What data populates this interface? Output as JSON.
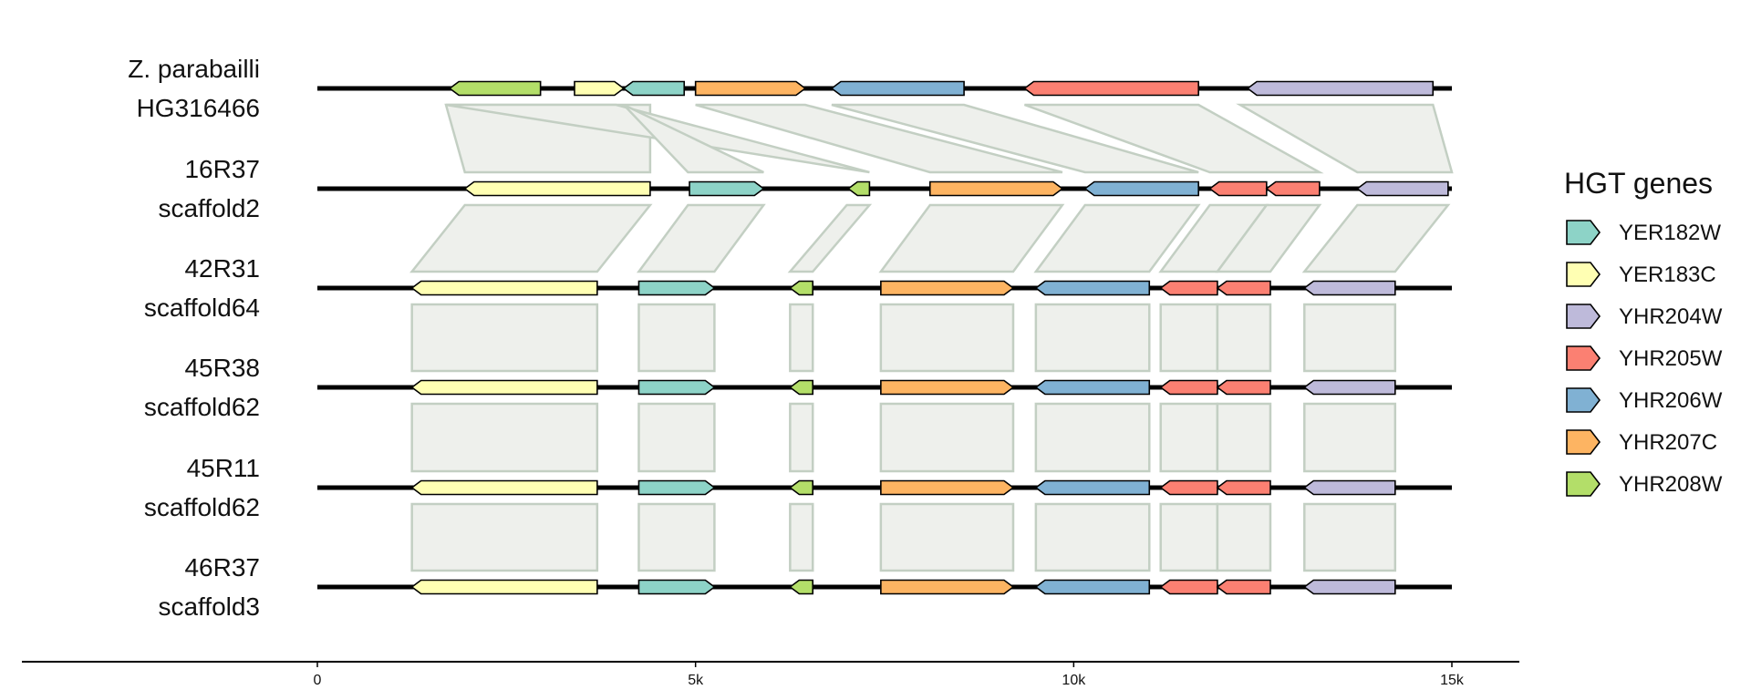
{
  "gene_colors": {
    "YER182W": "#8dd3c7",
    "YER183C": "#ffffb3",
    "YHR204W": "#bebada",
    "YHR205W": "#fb8072",
    "YHR206W": "#80b1d3",
    "YHR207C": "#fdb462",
    "YHR208W": "#b3de69"
  },
  "legend": {
    "title": "HGT genes",
    "items": [
      "YER182W",
      "YER183C",
      "YHR204W",
      "YHR205W",
      "YHR206W",
      "YHR207C",
      "YHR208W"
    ]
  },
  "axis": {
    "ticks": [
      {
        "value": 0,
        "label": "0"
      },
      {
        "value": 5000,
        "label": "5k"
      },
      {
        "value": 10000,
        "label": "10k"
      },
      {
        "value": 15000,
        "label": "15k"
      }
    ]
  },
  "tracks": [
    {
      "label_line1": "Z. parabailli",
      "label_line2": "HG316466",
      "length": 15000,
      "genes": [
        {
          "gene": "YHR208W",
          "start": 1750,
          "end": 2950,
          "strand": "-"
        },
        {
          "gene": "YER183C",
          "start": 3400,
          "end": 4050,
          "strand": "+"
        },
        {
          "gene": "YER182W",
          "start": 4050,
          "end": 4850,
          "strand": "-"
        },
        {
          "gene": "YHR207C",
          "start": 5000,
          "end": 6450,
          "strand": "+"
        },
        {
          "gene": "YHR206W",
          "start": 6800,
          "end": 8550,
          "strand": "-"
        },
        {
          "gene": "YHR205W",
          "start": 9350,
          "end": 11650,
          "strand": "-"
        },
        {
          "gene": "YHR204W",
          "start": 12300,
          "end": 14750,
          "strand": "-"
        }
      ]
    },
    {
      "label_line1": "16R37",
      "label_line2": "scaffold2",
      "length": 15000,
      "genes": [
        {
          "gene": "YER183C",
          "start": 1950,
          "end": 4400,
          "strand": "-"
        },
        {
          "gene": "YER182W",
          "start": 4920,
          "end": 5900,
          "strand": "+"
        },
        {
          "gene": "YHR208W",
          "start": 7020,
          "end": 7300,
          "strand": "-"
        },
        {
          "gene": "YHR207C",
          "start": 8100,
          "end": 9850,
          "strand": "+"
        },
        {
          "gene": "YHR206W",
          "start": 10150,
          "end": 11650,
          "strand": "-"
        },
        {
          "gene": "YHR205W",
          "start": 11800,
          "end": 12550,
          "strand": "-"
        },
        {
          "gene": "YHR205W",
          "start": 12550,
          "end": 13250,
          "strand": "-"
        },
        {
          "gene": "YHR204W",
          "start": 13750,
          "end": 14950,
          "strand": "-"
        }
      ]
    },
    {
      "label_line1": "42R31",
      "label_line2": "scaffold64",
      "length": 15000,
      "genes": [
        {
          "gene": "YER183C",
          "start": 1250,
          "end": 3700,
          "strand": "-"
        },
        {
          "gene": "YER182W",
          "start": 4250,
          "end": 5250,
          "strand": "+"
        },
        {
          "gene": "YHR208W",
          "start": 6250,
          "end": 6550,
          "strand": "-"
        },
        {
          "gene": "YHR207C",
          "start": 7450,
          "end": 9200,
          "strand": "+"
        },
        {
          "gene": "YHR206W",
          "start": 9500,
          "end": 11000,
          "strand": "-"
        },
        {
          "gene": "YHR205W",
          "start": 11150,
          "end": 11900,
          "strand": "-"
        },
        {
          "gene": "YHR205W",
          "start": 11900,
          "end": 12600,
          "strand": "-"
        },
        {
          "gene": "YHR204W",
          "start": 13050,
          "end": 14250,
          "strand": "-"
        }
      ]
    },
    {
      "label_line1": "45R38",
      "label_line2": "scaffold62",
      "length": 15000,
      "genes": [
        {
          "gene": "YER183C",
          "start": 1250,
          "end": 3700,
          "strand": "-"
        },
        {
          "gene": "YER182W",
          "start": 4250,
          "end": 5250,
          "strand": "+"
        },
        {
          "gene": "YHR208W",
          "start": 6250,
          "end": 6550,
          "strand": "-"
        },
        {
          "gene": "YHR207C",
          "start": 7450,
          "end": 9200,
          "strand": "+"
        },
        {
          "gene": "YHR206W",
          "start": 9500,
          "end": 11000,
          "strand": "-"
        },
        {
          "gene": "YHR205W",
          "start": 11150,
          "end": 11900,
          "strand": "-"
        },
        {
          "gene": "YHR205W",
          "start": 11900,
          "end": 12600,
          "strand": "-"
        },
        {
          "gene": "YHR204W",
          "start": 13050,
          "end": 14250,
          "strand": "-"
        }
      ]
    },
    {
      "label_line1": "45R11",
      "label_line2": "scaffold62",
      "length": 15000,
      "genes": [
        {
          "gene": "YER183C",
          "start": 1250,
          "end": 3700,
          "strand": "-"
        },
        {
          "gene": "YER182W",
          "start": 4250,
          "end": 5250,
          "strand": "+"
        },
        {
          "gene": "YHR208W",
          "start": 6250,
          "end": 6550,
          "strand": "-"
        },
        {
          "gene": "YHR207C",
          "start": 7450,
          "end": 9200,
          "strand": "+"
        },
        {
          "gene": "YHR206W",
          "start": 9500,
          "end": 11000,
          "strand": "-"
        },
        {
          "gene": "YHR205W",
          "start": 11150,
          "end": 11900,
          "strand": "-"
        },
        {
          "gene": "YHR205W",
          "start": 11900,
          "end": 12600,
          "strand": "-"
        },
        {
          "gene": "YHR204W",
          "start": 13050,
          "end": 14250,
          "strand": "-"
        }
      ]
    },
    {
      "label_line1": "46R37",
      "label_line2": "scaffold3",
      "length": 15000,
      "genes": [
        {
          "gene": "YER183C",
          "start": 1250,
          "end": 3700,
          "strand": "-"
        },
        {
          "gene": "YER182W",
          "start": 4250,
          "end": 5250,
          "strand": "+"
        },
        {
          "gene": "YHR208W",
          "start": 6250,
          "end": 6550,
          "strand": "-"
        },
        {
          "gene": "YHR207C",
          "start": 7450,
          "end": 9200,
          "strand": "+"
        },
        {
          "gene": "YHR206W",
          "start": 9500,
          "end": 11000,
          "strand": "-"
        },
        {
          "gene": "YHR205W",
          "start": 11150,
          "end": 11900,
          "strand": "-"
        },
        {
          "gene": "YHR205W",
          "start": 11900,
          "end": 12600,
          "strand": "-"
        },
        {
          "gene": "YHR204W",
          "start": 13050,
          "end": 14250,
          "strand": "-"
        }
      ]
    }
  ],
  "links": [
    {
      "from_track": 0,
      "to_track": 1,
      "from": [
        1700,
        4400
      ],
      "to": [
        1950,
        4400
      ]
    },
    {
      "from_track": 0,
      "to_track": 1,
      "from": [
        1700,
        3950
      ],
      "to": [
        7300,
        7300
      ]
    },
    {
      "from_track": 0,
      "to_track": 1,
      "from": [
        4050,
        4050
      ],
      "to": [
        4900,
        5900
      ]
    },
    {
      "from_track": 0,
      "to_track": 1,
      "from": [
        5000,
        6450
      ],
      "to": [
        8100,
        9850
      ]
    },
    {
      "from_track": 0,
      "to_track": 1,
      "from": [
        6800,
        8550
      ],
      "to": [
        10150,
        11650
      ]
    },
    {
      "from_track": 0,
      "to_track": 1,
      "from": [
        9350,
        11650
      ],
      "to": [
        11800,
        13250
      ]
    },
    {
      "from_track": 0,
      "to_track": 1,
      "from": [
        12200,
        14750
      ],
      "to": [
        13750,
        15000
      ]
    },
    {
      "from_track": 1,
      "to_track": 2,
      "from": [
        1950,
        4400
      ],
      "to": [
        1250,
        3700
      ]
    },
    {
      "from_track": 1,
      "to_track": 2,
      "from": [
        4900,
        5900
      ],
      "to": [
        4250,
        5250
      ]
    },
    {
      "from_track": 1,
      "to_track": 2,
      "from": [
        7000,
        7300
      ],
      "to": [
        6250,
        6550
      ]
    },
    {
      "from_track": 1,
      "to_track": 2,
      "from": [
        8100,
        9850
      ],
      "to": [
        7450,
        9200
      ]
    },
    {
      "from_track": 1,
      "to_track": 2,
      "from": [
        10150,
        11650
      ],
      "to": [
        9500,
        11000
      ]
    },
    {
      "from_track": 1,
      "to_track": 2,
      "from": [
        11800,
        12550
      ],
      "to": [
        11150,
        11900
      ]
    },
    {
      "from_track": 1,
      "to_track": 2,
      "from": [
        12550,
        13250
      ],
      "to": [
        11900,
        12600
      ]
    },
    {
      "from_track": 1,
      "to_track": 2,
      "from": [
        13750,
        14950
      ],
      "to": [
        13050,
        14250
      ]
    },
    {
      "from_track": 2,
      "to_track": 3,
      "from": [
        1250,
        3700
      ],
      "to": [
        1250,
        3700
      ]
    },
    {
      "from_track": 2,
      "to_track": 3,
      "from": [
        4250,
        5250
      ],
      "to": [
        4250,
        5250
      ]
    },
    {
      "from_track": 2,
      "to_track": 3,
      "from": [
        6250,
        6550
      ],
      "to": [
        6250,
        6550
      ]
    },
    {
      "from_track": 2,
      "to_track": 3,
      "from": [
        7450,
        9200
      ],
      "to": [
        7450,
        9200
      ]
    },
    {
      "from_track": 2,
      "to_track": 3,
      "from": [
        9500,
        11000
      ],
      "to": [
        9500,
        11000
      ]
    },
    {
      "from_track": 2,
      "to_track": 3,
      "from": [
        11150,
        11900
      ],
      "to": [
        11150,
        11900
      ]
    },
    {
      "from_track": 2,
      "to_track": 3,
      "from": [
        11900,
        12600
      ],
      "to": [
        11900,
        12600
      ]
    },
    {
      "from_track": 2,
      "to_track": 3,
      "from": [
        13050,
        14250
      ],
      "to": [
        13050,
        14250
      ]
    },
    {
      "from_track": 3,
      "to_track": 4,
      "from": [
        1250,
        3700
      ],
      "to": [
        1250,
        3700
      ]
    },
    {
      "from_track": 3,
      "to_track": 4,
      "from": [
        4250,
        5250
      ],
      "to": [
        4250,
        5250
      ]
    },
    {
      "from_track": 3,
      "to_track": 4,
      "from": [
        6250,
        6550
      ],
      "to": [
        6250,
        6550
      ]
    },
    {
      "from_track": 3,
      "to_track": 4,
      "from": [
        7450,
        9200
      ],
      "to": [
        7450,
        9200
      ]
    },
    {
      "from_track": 3,
      "to_track": 4,
      "from": [
        9500,
        11000
      ],
      "to": [
        9500,
        11000
      ]
    },
    {
      "from_track": 3,
      "to_track": 4,
      "from": [
        11150,
        11900
      ],
      "to": [
        11150,
        11900
      ]
    },
    {
      "from_track": 3,
      "to_track": 4,
      "from": [
        11900,
        12600
      ],
      "to": [
        11900,
        12600
      ]
    },
    {
      "from_track": 3,
      "to_track": 4,
      "from": [
        13050,
        14250
      ],
      "to": [
        13050,
        14250
      ]
    },
    {
      "from_track": 4,
      "to_track": 5,
      "from": [
        1250,
        3700
      ],
      "to": [
        1250,
        3700
      ]
    },
    {
      "from_track": 4,
      "to_track": 5,
      "from": [
        4250,
        5250
      ],
      "to": [
        4250,
        5250
      ]
    },
    {
      "from_track": 4,
      "to_track": 5,
      "from": [
        6250,
        6550
      ],
      "to": [
        6250,
        6550
      ]
    },
    {
      "from_track": 4,
      "to_track": 5,
      "from": [
        7450,
        9200
      ],
      "to": [
        7450,
        9200
      ]
    },
    {
      "from_track": 4,
      "to_track": 5,
      "from": [
        9500,
        11000
      ],
      "to": [
        9500,
        11000
      ]
    },
    {
      "from_track": 4,
      "to_track": 5,
      "from": [
        11150,
        11900
      ],
      "to": [
        11150,
        11900
      ]
    },
    {
      "from_track": 4,
      "to_track": 5,
      "from": [
        11900,
        12600
      ],
      "to": [
        11900,
        12600
      ]
    },
    {
      "from_track": 4,
      "to_track": 5,
      "from": [
        13050,
        14250
      ],
      "to": [
        13050,
        14250
      ]
    }
  ]
}
